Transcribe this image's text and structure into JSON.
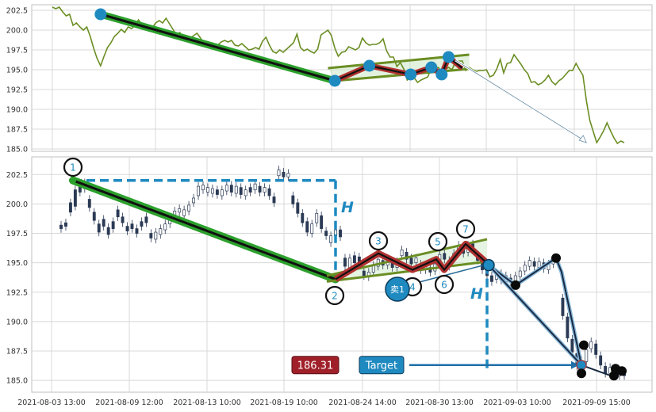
{
  "chart_data": [
    {
      "type": "line",
      "panel": "top",
      "ylim": [
        184.7,
        203.2
      ],
      "yticks": [
        "202.5",
        "200.0",
        "197.5",
        "195.0",
        "192.5",
        "190.0",
        "187.5",
        "185.0"
      ],
      "grid": true,
      "line_color": "#6b8e23",
      "series": [
        {
          "values": [
            202.9,
            202.7,
            202.9,
            202.3,
            201.8,
            202.0,
            200.6,
            200.9,
            200.4,
            200.0,
            200.4,
            199.2,
            197.7,
            196.4,
            195.5,
            196.7,
            197.8,
            198.4,
            199.2,
            199.6,
            200.1,
            199.7,
            200.4,
            200.2,
            200.6,
            201.3,
            200.7,
            200.5,
            199.9,
            200.3,
            200.9,
            201.2,
            200.9,
            201.5,
            200.8,
            200.1,
            199.4,
            199.7,
            198.9,
            199.3,
            199.0,
            199.3,
            199.6,
            199.0,
            198.3,
            198.2,
            198.4,
            198.2,
            198.1,
            198.5,
            198.7,
            198.5,
            198.7,
            198.1,
            198.0,
            198.3,
            197.9,
            197.5,
            197.6,
            197.8,
            197.6,
            198.6,
            199.1,
            198.1,
            197.3,
            197.1,
            197.5,
            197.2,
            197.6,
            198.0,
            198.4,
            199.5,
            197.8,
            197.4,
            197.6,
            197.3,
            197.1,
            197.6,
            199.4,
            199.7,
            200.0,
            199.3,
            197.7,
            196.7,
            197.2,
            197.3,
            197.9,
            197.7,
            197.5,
            197.8,
            199.0,
            198.4,
            198.1,
            198.2,
            198.2,
            198.4,
            198.9,
            197.4,
            196.6,
            196.6,
            195.4,
            195.9,
            195.1,
            193.7,
            194.1,
            194.0,
            193.4,
            193.7,
            193.9,
            194.1,
            195.3,
            195.2,
            195.3,
            194.7,
            195.0,
            195.3,
            195.0,
            196.0,
            196.1,
            196.1,
            194.9,
            195.3,
            195.0,
            194.8,
            194.9,
            194.9,
            195.0,
            194.1,
            194.3,
            195.1,
            196.3,
            194.6,
            195.8,
            195.9,
            196.9,
            196.3,
            195.7,
            195.0,
            194.5,
            193.4,
            193.5,
            193.1,
            193.3,
            193.7,
            194.3,
            193.5,
            193.1,
            193.6,
            193.9,
            194.4,
            194.9,
            194.9,
            195.8,
            195.0,
            194.3,
            191.1,
            188.6,
            187.2,
            185.8,
            186.5,
            187.3,
            188.3,
            187.3,
            186.4,
            185.7,
            186.0,
            185.8
          ]
        }
      ],
      "points_blue": [
        [
          14,
          202.0
        ],
        [
          82,
          193.6
        ],
        [
          92,
          195.5
        ],
        [
          104,
          194.4
        ],
        [
          110,
          195.3
        ],
        [
          113,
          194.4
        ],
        [
          115,
          196.6
        ]
      ],
      "trend_line": [
        [
          14,
          202.0
        ],
        [
          82,
          193.6
        ]
      ],
      "flag_upper": [
        [
          80,
          195.2
        ],
        [
          121,
          196.9
        ]
      ],
      "flag_lower": [
        [
          82,
          193.6
        ],
        [
          121,
          195.1
        ]
      ],
      "zigzag": [
        [
          82,
          193.6
        ],
        [
          92,
          195.5
        ],
        [
          104,
          194.4
        ],
        [
          110,
          195.3
        ],
        [
          113,
          194.4
        ],
        [
          115,
          196.6
        ],
        [
          119,
          195.2
        ]
      ],
      "target_arrow": [
        [
          117,
          196.2
        ],
        [
          155,
          185.8
        ]
      ]
    },
    {
      "type": "candlestick",
      "panel": "bottom",
      "ylim": [
        184.0,
        204.0
      ],
      "yticks": [
        "202.5",
        "200.0",
        "197.5",
        "195.0",
        "192.5",
        "190.0",
        "187.5",
        "185.0"
      ],
      "xticks": [
        "2021-08-03 13:00",
        "2021-08-09 12:00",
        "2021-08-13 10:00",
        "2021-08-19 10:00",
        "2021-08-24 14:00",
        "2021-08-30 13:00",
        "2021-09-03 10:00",
        "2021-09-09 15:00"
      ],
      "grid": true,
      "candles": [
        {
          "o": 198.2,
          "c": 197.9
        },
        {
          "o": 198.4,
          "c": 198.1
        },
        {
          "o": 200.1,
          "c": 199.3
        },
        {
          "o": 201.2,
          "c": 199.8
        },
        {
          "o": 201.6,
          "c": 201.0
        },
        {
          "o": 201.8,
          "c": 201.3
        },
        {
          "o": 200.4,
          "c": 199.7
        },
        {
          "o": 199.3,
          "c": 198.6
        },
        {
          "o": 198.3,
          "c": 197.6
        },
        {
          "o": 198.7,
          "c": 198.1
        },
        {
          "o": 198.0,
          "c": 197.4
        },
        {
          "o": 198.5,
          "c": 197.9
        },
        {
          "o": 199.5,
          "c": 198.9
        },
        {
          "o": 198.9,
          "c": 198.4
        },
        {
          "o": 198.1,
          "c": 197.7
        },
        {
          "o": 198.3,
          "c": 197.9
        },
        {
          "o": 197.9,
          "c": 197.5
        },
        {
          "o": 198.5,
          "c": 198.1
        },
        {
          "o": 198.9,
          "c": 198.4
        },
        {
          "o": 197.5,
          "c": 197.1
        },
        {
          "o": 197.0,
          "c": 197.6
        },
        {
          "o": 197.4,
          "c": 197.9
        },
        {
          "o": 197.8,
          "c": 198.3
        },
        {
          "o": 198.3,
          "c": 198.8
        },
        {
          "o": 198.8,
          "c": 199.4
        },
        {
          "o": 199.3,
          "c": 199.6
        },
        {
          "o": 199.0,
          "c": 199.5
        },
        {
          "o": 199.4,
          "c": 199.9
        },
        {
          "o": 200.1,
          "c": 200.5
        },
        {
          "o": 200.7,
          "c": 201.5
        },
        {
          "o": 201.2,
          "c": 201.6
        },
        {
          "o": 201.0,
          "c": 201.4
        },
        {
          "o": 200.9,
          "c": 201.3
        },
        {
          "o": 201.2,
          "c": 200.8
        },
        {
          "o": 200.7,
          "c": 201.2
        },
        {
          "o": 201.1,
          "c": 201.6
        },
        {
          "o": 201.6,
          "c": 201.0
        },
        {
          "o": 200.9,
          "c": 201.5
        },
        {
          "o": 201.4,
          "c": 200.8
        },
        {
          "o": 200.7,
          "c": 201.2
        },
        {
          "o": 201.4,
          "c": 201.0
        },
        {
          "o": 201.2,
          "c": 201.7
        },
        {
          "o": 201.5,
          "c": 201.0
        },
        {
          "o": 201.0,
          "c": 201.4
        },
        {
          "o": 201.3,
          "c": 200.7
        },
        {
          "o": 200.6,
          "c": 200.1
        },
        {
          "o": 202.4,
          "c": 202.9
        },
        {
          "o": 202.7,
          "c": 202.3
        },
        {
          "o": 202.3,
          "c": 202.6
        },
        {
          "o": 200.7,
          "c": 200.0
        },
        {
          "o": 200.1,
          "c": 199.2
        },
        {
          "o": 199.2,
          "c": 198.4
        },
        {
          "o": 198.5,
          "c": 197.6
        },
        {
          "o": 197.5,
          "c": 198.3
        },
        {
          "o": 198.4,
          "c": 199.2
        },
        {
          "o": 199.0,
          "c": 197.9
        },
        {
          "o": 197.7,
          "c": 197.3
        },
        {
          "o": 196.7,
          "c": 197.3
        },
        {
          "o": 197.3,
          "c": 197.8
        },
        {
          "o": 197.8,
          "c": 197.2
        },
        {
          "o": 195.4,
          "c": 194.7
        },
        {
          "o": 194.5,
          "c": 195.4
        },
        {
          "o": 195.6,
          "c": 195.0
        },
        {
          "o": 195.5,
          "c": 194.9
        },
        {
          "o": 194.3,
          "c": 193.9
        },
        {
          "o": 193.8,
          "c": 194.2
        },
        {
          "o": 194.2,
          "c": 194.8
        },
        {
          "o": 194.7,
          "c": 195.3
        },
        {
          "o": 195.2,
          "c": 194.8
        },
        {
          "o": 194.8,
          "c": 195.3
        },
        {
          "o": 195.1,
          "c": 194.6
        },
        {
          "o": 194.6,
          "c": 195.1
        },
        {
          "o": 195.6,
          "c": 196.1
        },
        {
          "o": 195.9,
          "c": 195.3
        },
        {
          "o": 195.4,
          "c": 194.9
        },
        {
          "o": 195.0,
          "c": 195.4
        },
        {
          "o": 194.9,
          "c": 194.4
        },
        {
          "o": 194.4,
          "c": 194.8
        },
        {
          "o": 194.6,
          "c": 194.2
        },
        {
          "o": 194.3,
          "c": 194.9
        },
        {
          "o": 195.0,
          "c": 195.7
        },
        {
          "o": 195.8,
          "c": 195.3
        },
        {
          "o": 194.7,
          "c": 195.2
        },
        {
          "o": 195.3,
          "c": 195.8
        },
        {
          "o": 195.9,
          "c": 196.5
        },
        {
          "o": 196.4,
          "c": 195.8
        },
        {
          "o": 195.9,
          "c": 196.5
        },
        {
          "o": 196.6,
          "c": 196.1
        },
        {
          "o": 195.7,
          "c": 195.2
        },
        {
          "o": 195.0,
          "c": 194.4
        },
        {
          "o": 194.3,
          "c": 193.9
        },
        {
          "o": 193.9,
          "c": 193.4
        },
        {
          "o": 193.6,
          "c": 194.1
        },
        {
          "o": 194.1,
          "c": 193.5
        },
        {
          "o": 193.4,
          "c": 193.9
        },
        {
          "o": 193.7,
          "c": 193.3
        },
        {
          "o": 193.4,
          "c": 193.9
        },
        {
          "o": 193.8,
          "c": 194.3
        },
        {
          "o": 194.3,
          "c": 194.8
        },
        {
          "o": 194.7,
          "c": 195.2
        },
        {
          "o": 195.1,
          "c": 194.7
        },
        {
          "o": 194.6,
          "c": 195.1
        },
        {
          "o": 195.0,
          "c": 194.5
        },
        {
          "o": 194.4,
          "c": 194.9
        },
        {
          "o": 194.9,
          "c": 195.4
        },
        {
          "o": 195.2,
          "c": 195.0
        },
        {
          "o": 192.0,
          "c": 190.5
        },
        {
          "o": 190.4,
          "c": 188.6
        },
        {
          "o": 188.5,
          "c": 187.4
        },
        {
          "o": 187.3,
          "c": 186.2
        },
        {
          "o": 186.1,
          "c": 186.7
        },
        {
          "o": 186.6,
          "c": 187.6
        },
        {
          "o": 187.7,
          "c": 188.3
        },
        {
          "o": 188.1,
          "c": 187.2
        },
        {
          "o": 187.1,
          "c": 186.3
        },
        {
          "o": 186.2,
          "c": 185.6
        },
        {
          "o": 185.6,
          "c": 186.1
        },
        {
          "o": 186.0,
          "c": 185.5
        },
        {
          "o": 185.4,
          "c": 185.8
        },
        {
          "o": 185.7,
          "c": 185.4
        }
      ],
      "labeled_points": [
        {
          "n": "1",
          "v": 202.0
        },
        {
          "n": "3",
          "v": 195.8
        },
        {
          "n": "4",
          "v": 194.4
        },
        {
          "n": "5",
          "v": 195.3
        },
        {
          "n": "6",
          "v": 194.4
        },
        {
          "n": "7",
          "v": 196.6
        }
      ],
      "pattern_line": [
        [
          202.0
        ],
        [
          193.6
        ]
      ],
      "flag_upper": [
        193.9,
        197.0
      ],
      "flag_lower": [
        193.4,
        195.1
      ],
      "zigzag": [
        193.6,
        195.8,
        194.4,
        195.3,
        194.4,
        196.6,
        195.1
      ],
      "breakout_y": 194.8,
      "target_y": 186.31,
      "path_points": [
        [
          194.8
        ],
        [
          193.1
        ],
        [
          195.4
        ],
        [
          194.2
        ],
        [
          186.3
        ]
      ],
      "black_points": [
        193.1,
        195.4,
        188.0,
        185.6,
        186.0,
        185.4,
        185.8
      ],
      "height_marker_label": "H",
      "sell_label": "卖1",
      "price_badge": "186.31",
      "target_label": "Target",
      "colors": {
        "trend": "#2ca02c",
        "flag": "#6b8e23",
        "zigzag": "#b03030",
        "dash": "#1f8ac0",
        "badge_red": "#a0202a",
        "badge_blue": "#1f8ac0"
      }
    }
  ]
}
